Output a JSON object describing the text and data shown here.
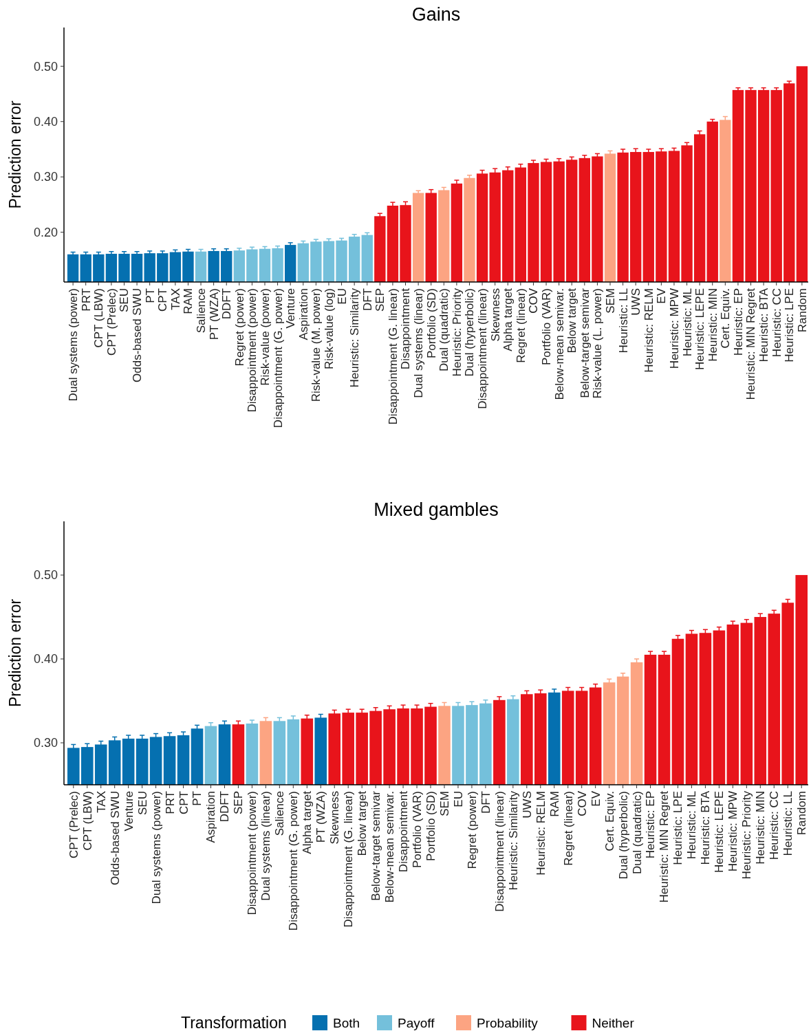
{
  "chart_data": [
    {
      "type": "bar",
      "title": "Gains",
      "ylabel": "Prediction error",
      "ylim": [
        0.11,
        0.57
      ],
      "yticks": [
        {
          "value": 0.2,
          "label": "0.20"
        },
        {
          "value": 0.3,
          "label": "0.30"
        },
        {
          "value": 0.4,
          "label": "0.40"
        },
        {
          "value": 0.5,
          "label": "0.50"
        }
      ],
      "stacked": true,
      "grid": false,
      "legend": false,
      "categories": [
        "Dual systems (power)",
        "PRT",
        "CPT (LBW)",
        "CPT (Prelec)",
        "SEU",
        "Odds-based SWU",
        "PT",
        "CPT",
        "TAX",
        "RAM",
        "Salience",
        "PT (WZA)",
        "DDFT",
        "Regret (power)",
        "Disappointment (power)",
        "Risk-value (power)",
        "Disappointment (G. power)",
        "Venture",
        "Aspiration",
        "Risk-value (M. power)",
        "Risk-value (log)",
        "EU",
        "Heuristic: Similarity",
        "DFT",
        "SEP",
        "Disappointment (G. linear)",
        "Disappointment",
        "Dual systems (linear)",
        "Portfolio (SD)",
        "Dual (quadratic)",
        "Heuristic: Priority",
        "Dual (hyperbolic)",
        "Disappointment (linear)",
        "Skewness",
        "Alpha target",
        "Regret (linear)",
        "COV",
        "Portfolio (VAR)",
        "Below-mean semivar.",
        "Below target",
        "Below-target semivar",
        "Risk-value (L. power)",
        "SEM",
        "Heuristic: LL",
        "UWS",
        "Heuristic: RELM",
        "EV",
        "Heuristic: MPW",
        "Heuristic: ML",
        "Heuristic: LEPE",
        "Heuristic: MIN",
        "Cert. Equiv.",
        "Heuristic: EP",
        "Heuristic: MIN Regret",
        "Heuristic: BTA",
        "Heuristic: CC",
        "Heuristic: LPE",
        "Random"
      ],
      "series": [
        {
          "color": "#0570b0",
          "values": [
            0.16,
            0.16,
            0.16,
            0.161,
            0.161,
            0.161,
            0.162,
            0.162,
            0.164,
            0.165,
            null,
            0.166,
            0.166,
            null,
            null,
            null,
            null,
            0.177,
            null,
            null,
            null,
            null,
            null,
            null,
            null,
            null,
            null,
            null,
            null,
            null,
            null,
            null,
            null,
            null,
            null,
            null,
            null,
            null,
            null,
            null,
            null,
            null,
            null,
            null,
            null,
            null,
            null,
            null,
            null,
            null,
            null,
            null,
            null,
            null,
            null,
            null,
            null,
            null
          ],
          "errors": [
            0.004,
            0.004,
            0.004,
            0.004,
            0.004,
            0.004,
            0.004,
            0.004,
            0.004,
            0.004,
            null,
            0.004,
            0.004,
            null,
            null,
            null,
            null,
            0.004,
            null,
            null,
            null,
            null,
            null,
            null,
            null,
            null,
            null,
            null,
            null,
            null,
            null,
            null,
            null,
            null,
            null,
            null,
            null,
            null,
            null,
            null,
            null,
            null,
            null,
            null,
            null,
            null,
            null,
            null,
            null,
            null,
            null,
            null,
            null,
            null,
            null,
            null,
            null,
            null
          ]
        },
        {
          "color": "#74c0db",
          "values": [
            null,
            null,
            null,
            null,
            null,
            null,
            null,
            null,
            null,
            null,
            0.165,
            null,
            null,
            0.167,
            0.169,
            0.17,
            0.171,
            null,
            0.18,
            0.183,
            0.184,
            0.185,
            0.192,
            0.195,
            null,
            null,
            null,
            null,
            null,
            null,
            null,
            null,
            null,
            null,
            null,
            null,
            null,
            null,
            null,
            null,
            null,
            null,
            null,
            null,
            null,
            null,
            null,
            null,
            null,
            null,
            null,
            null,
            null,
            null,
            null,
            null,
            null,
            null
          ],
          "errors": [
            null,
            null,
            null,
            null,
            null,
            null,
            null,
            null,
            null,
            null,
            0.004,
            null,
            null,
            0.004,
            0.004,
            0.004,
            0.004,
            null,
            0.004,
            0.004,
            0.004,
            0.004,
            0.004,
            0.004,
            null,
            null,
            null,
            null,
            null,
            null,
            null,
            null,
            null,
            null,
            null,
            null,
            null,
            null,
            null,
            null,
            null,
            null,
            null,
            null,
            null,
            null,
            null,
            null,
            null,
            null,
            null,
            null,
            null,
            null,
            null,
            null,
            null,
            null
          ]
        },
        {
          "color": "#fca482",
          "values": [
            null,
            null,
            null,
            null,
            null,
            null,
            null,
            null,
            null,
            null,
            null,
            null,
            null,
            null,
            null,
            null,
            null,
            null,
            null,
            null,
            null,
            null,
            null,
            null,
            null,
            null,
            null,
            0.271,
            null,
            0.276,
            null,
            0.298,
            null,
            null,
            null,
            null,
            null,
            null,
            null,
            null,
            null,
            null,
            0.342,
            null,
            null,
            null,
            null,
            null,
            null,
            null,
            null,
            0.403,
            null,
            null,
            null,
            null,
            null,
            null
          ],
          "errors": [
            null,
            null,
            null,
            null,
            null,
            null,
            null,
            null,
            null,
            null,
            null,
            null,
            null,
            null,
            null,
            null,
            null,
            null,
            null,
            null,
            null,
            null,
            null,
            null,
            null,
            null,
            null,
            0.004,
            null,
            0.005,
            null,
            0.005,
            null,
            null,
            null,
            null,
            null,
            null,
            null,
            null,
            null,
            null,
            0.005,
            null,
            null,
            null,
            null,
            null,
            null,
            null,
            null,
            0.006,
            null,
            null,
            null,
            null,
            null,
            null
          ]
        },
        {
          "color": "#e8141b",
          "values": [
            null,
            null,
            null,
            null,
            null,
            null,
            null,
            null,
            null,
            null,
            null,
            null,
            null,
            null,
            null,
            null,
            null,
            null,
            null,
            null,
            null,
            null,
            null,
            null,
            0.229,
            0.248,
            0.249,
            null,
            0.271,
            null,
            0.288,
            null,
            0.306,
            0.308,
            0.312,
            0.317,
            0.325,
            0.327,
            0.328,
            0.331,
            0.334,
            0.337,
            null,
            0.344,
            0.345,
            0.345,
            0.346,
            0.347,
            0.357,
            0.377,
            0.4,
            null,
            0.457,
            0.457,
            0.457,
            0.457,
            0.469,
            0.5
          ],
          "errors": [
            null,
            null,
            null,
            null,
            null,
            null,
            null,
            null,
            null,
            null,
            null,
            null,
            null,
            null,
            null,
            null,
            null,
            null,
            null,
            null,
            null,
            null,
            null,
            null,
            0.005,
            0.006,
            0.006,
            null,
            0.006,
            null,
            0.006,
            null,
            0.006,
            0.007,
            0.006,
            0.006,
            0.005,
            0.005,
            0.005,
            0.005,
            0.005,
            0.005,
            null,
            0.006,
            0.006,
            0.005,
            0.005,
            0.005,
            0.005,
            0.006,
            0.004,
            null,
            0.004,
            0.004,
            0.004,
            0.004,
            0.004,
            null
          ]
        }
      ]
    },
    {
      "type": "bar",
      "title": "Mixed gambles",
      "ylabel": "Prediction error",
      "ylim": [
        0.25,
        0.564
      ],
      "yticks": [
        {
          "value": 0.3,
          "label": "0.30"
        },
        {
          "value": 0.4,
          "label": "0.40"
        },
        {
          "value": 0.5,
          "label": "0.50"
        }
      ],
      "stacked": true,
      "grid": false,
      "legend": "bottom",
      "legend_title": "Transformation",
      "categories": [
        "CPT (Prelec)",
        "CPT (LBW)",
        "TAX",
        "Odds-based SWU",
        "Venture",
        "SEU",
        "Dual systems (power)",
        "PRT",
        "CPT",
        "PT",
        "Aspiration",
        "DDFT",
        "SEP",
        "Disappointment (power)",
        "Dual systems (linear)",
        "Salience",
        "Disappointment (G. power)",
        "Alpha target",
        "PT (WZA)",
        "Skewness",
        "Disappointment (G. linear)",
        "Below target",
        "Below-target semivar",
        "Below-mean semivar.",
        "Disappointment",
        "Portfolio (VAR)",
        "Portfolio (SD)",
        "SEM",
        "EU",
        "Regret (power)",
        "DFT",
        "Disappointment (linear)",
        "Heuristic: Similarity",
        "UWS",
        "Heuristic: RELM",
        "RAM",
        "Regret (linear)",
        "COV",
        "EV",
        "Cert. Equiv.",
        "Dual (hyperbolic)",
        "Dual (quadratic)",
        "Heuristic: EP",
        "Heuristic: MIN Regret",
        "Heuristic: LPE",
        "Heuristic: ML",
        "Heuristic: BTA",
        "Heuristic: LEPE",
        "Heuristic: MPW",
        "Heuristic: Priority",
        "Heuristic: MIN",
        "Heuristic: CC",
        "Heuristic: LL",
        "Random"
      ],
      "series": [
        {
          "name": "Both",
          "color": "#0570b0",
          "values": [
            0.294,
            0.295,
            0.298,
            0.303,
            0.305,
            0.305,
            0.307,
            0.308,
            0.309,
            0.317,
            null,
            0.322,
            null,
            null,
            null,
            null,
            null,
            null,
            0.33,
            null,
            null,
            null,
            null,
            null,
            null,
            null,
            null,
            null,
            null,
            null,
            null,
            null,
            null,
            null,
            null,
            0.36,
            null,
            null,
            null,
            null,
            null,
            null,
            null,
            null,
            null,
            null,
            null,
            null,
            null,
            null,
            null,
            null,
            null,
            null
          ],
          "errors": [
            0.004,
            0.004,
            0.004,
            0.004,
            0.004,
            0.004,
            0.004,
            0.004,
            0.004,
            0.004,
            null,
            0.004,
            null,
            null,
            null,
            null,
            null,
            null,
            0.004,
            null,
            null,
            null,
            null,
            null,
            null,
            null,
            null,
            null,
            null,
            null,
            null,
            null,
            null,
            null,
            null,
            0.004,
            null,
            null,
            null,
            null,
            null,
            null,
            null,
            null,
            null,
            null,
            null,
            null,
            null,
            null,
            null,
            null,
            null,
            null
          ]
        },
        {
          "name": "Payoff",
          "color": "#74c0db",
          "values": [
            null,
            null,
            null,
            null,
            null,
            null,
            null,
            null,
            null,
            null,
            0.32,
            null,
            null,
            0.323,
            null,
            0.326,
            0.328,
            null,
            null,
            null,
            null,
            null,
            null,
            null,
            null,
            null,
            null,
            null,
            0.344,
            0.345,
            0.347,
            null,
            0.352,
            null,
            null,
            null,
            null,
            null,
            null,
            null,
            null,
            null,
            null,
            null,
            null,
            null,
            null,
            null,
            null,
            null,
            null,
            null,
            null,
            null
          ],
          "errors": [
            null,
            null,
            null,
            null,
            null,
            null,
            null,
            null,
            null,
            null,
            0.004,
            null,
            null,
            0.004,
            null,
            0.004,
            0.004,
            null,
            null,
            null,
            null,
            null,
            null,
            null,
            null,
            null,
            null,
            null,
            0.004,
            0.004,
            0.004,
            null,
            0.004,
            null,
            null,
            null,
            null,
            null,
            null,
            null,
            null,
            null,
            null,
            null,
            null,
            null,
            null,
            null,
            null,
            null,
            null,
            null,
            null,
            null
          ]
        },
        {
          "name": "Probability",
          "color": "#fca482",
          "values": [
            null,
            null,
            null,
            null,
            null,
            null,
            null,
            null,
            null,
            null,
            null,
            null,
            null,
            null,
            0.326,
            null,
            null,
            null,
            null,
            null,
            null,
            null,
            null,
            null,
            null,
            null,
            null,
            0.344,
            null,
            null,
            null,
            null,
            null,
            null,
            null,
            null,
            null,
            null,
            null,
            0.372,
            0.379,
            0.396,
            null,
            null,
            null,
            null,
            null,
            null,
            null,
            null,
            null,
            null,
            null,
            null
          ],
          "errors": [
            null,
            null,
            null,
            null,
            null,
            null,
            null,
            null,
            null,
            null,
            null,
            null,
            null,
            null,
            0.004,
            null,
            null,
            null,
            null,
            null,
            null,
            null,
            null,
            null,
            null,
            null,
            null,
            0.004,
            null,
            null,
            null,
            null,
            null,
            null,
            null,
            null,
            null,
            null,
            null,
            0.004,
            0.004,
            0.004,
            null,
            null,
            null,
            null,
            null,
            null,
            null,
            null,
            null,
            null,
            null,
            null
          ]
        },
        {
          "name": "Neither",
          "color": "#e8141b",
          "values": [
            null,
            null,
            null,
            null,
            null,
            null,
            null,
            null,
            null,
            null,
            null,
            null,
            0.322,
            null,
            null,
            null,
            null,
            0.329,
            null,
            0.335,
            0.336,
            0.336,
            0.338,
            0.34,
            0.341,
            0.341,
            0.343,
            null,
            null,
            null,
            null,
            0.351,
            null,
            0.358,
            0.359,
            null,
            0.362,
            0.362,
            0.366,
            null,
            null,
            null,
            0.405,
            0.405,
            0.424,
            0.43,
            0.431,
            0.434,
            0.441,
            0.443,
            0.45,
            0.454,
            0.467,
            0.5
          ],
          "errors": [
            null,
            null,
            null,
            null,
            null,
            null,
            null,
            null,
            null,
            null,
            null,
            null,
            0.004,
            null,
            null,
            null,
            null,
            0.004,
            null,
            0.004,
            0.004,
            0.004,
            0.004,
            0.004,
            0.004,
            0.004,
            0.004,
            null,
            null,
            null,
            null,
            0.004,
            null,
            0.004,
            0.004,
            null,
            0.004,
            0.004,
            0.004,
            null,
            null,
            null,
            0.004,
            0.004,
            0.004,
            0.004,
            0.004,
            0.004,
            0.004,
            0.004,
            0.004,
            0.004,
            0.004,
            null
          ]
        }
      ]
    }
  ]
}
